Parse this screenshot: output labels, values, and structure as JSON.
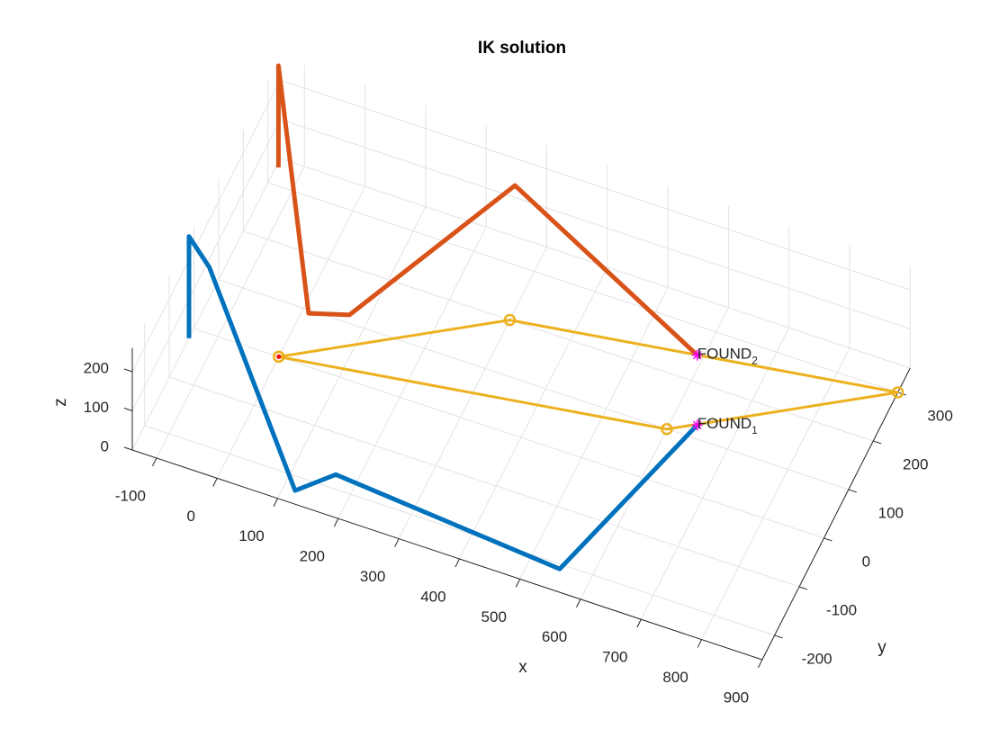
{
  "chart_data": {
    "type": "line3d",
    "title": "IK solution",
    "xlabel": "x",
    "ylabel": "y",
    "zlabel": "z",
    "xlim": [
      -140,
      900
    ],
    "ylim": [
      -250,
      350
    ],
    "zlim": [
      0,
      260
    ],
    "xticks": [
      -100,
      0,
      100,
      200,
      300,
      400,
      500,
      600,
      700,
      800,
      900
    ],
    "yticks": [
      -200,
      -100,
      0,
      100,
      200,
      300
    ],
    "zticks": [
      0,
      100,
      200
    ],
    "grid": true,
    "series": [
      {
        "color": "#EDB120",
        "line_width": 3,
        "marker": "o",
        "x": [
          0,
          300,
          900,
          600,
          0
        ],
        "y": [
          0,
          200,
          300,
          100,
          0
        ],
        "z": [
          0,
          0,
          0,
          0,
          0
        ]
      },
      {
        "color": "#0072BD",
        "line_width": 5,
        "x": [
          -140,
          -140,
          -106,
          119,
          165,
          549,
          640
        ],
        "y": [
          -20,
          -20,
          -21,
          -226,
          -174,
          -209,
          125
        ],
        "z": [
          0,
          260,
          200,
          0,
          0,
          0,
          0
        ]
      },
      {
        "color": "#D95319",
        "line_width": 5,
        "x": [
          -136,
          -136,
          11,
          70,
          267,
          590
        ],
        "y": [
          333,
          333,
          94,
          115,
          302,
          248
        ],
        "z": [
          0,
          260,
          0,
          0,
          200,
          0
        ]
      },
      {
        "color": "#FF0000",
        "marker": ".",
        "x": [
          0
        ],
        "y": [
          0
        ],
        "z": [
          0
        ]
      },
      {
        "color": "#FF00FF",
        "marker": "*",
        "x": [
          640,
          590
        ],
        "y": [
          125,
          248
        ],
        "z": [
          0,
          0
        ],
        "labels": [
          {
            "text": "FOUND",
            "subscript": "1"
          },
          {
            "text": "FOUND",
            "subscript": "2"
          }
        ]
      }
    ]
  }
}
